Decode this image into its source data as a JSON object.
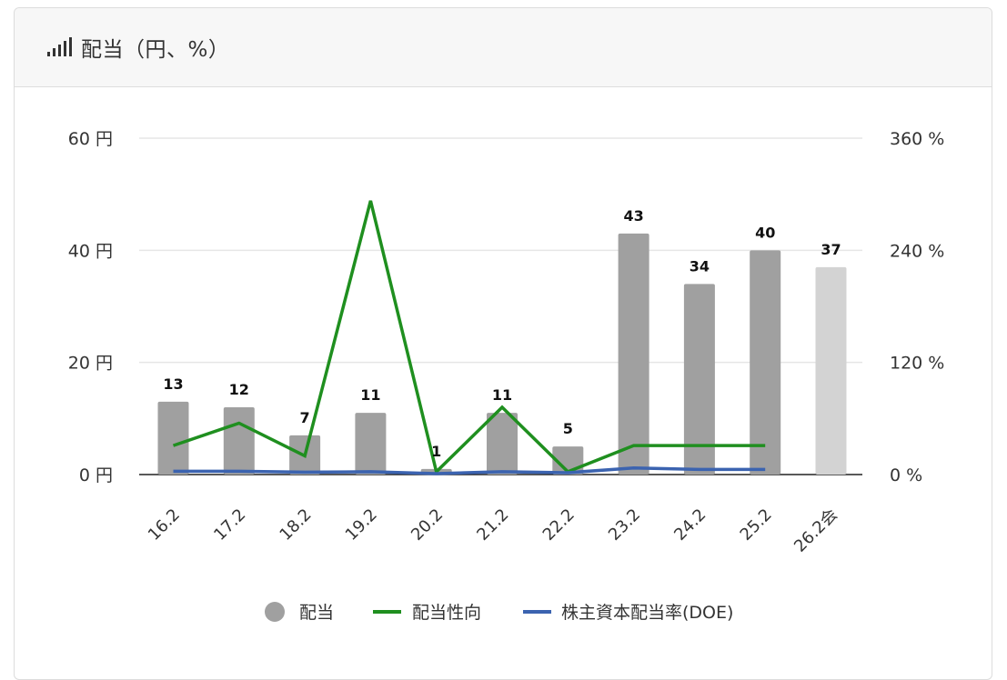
{
  "header": {
    "title": "配当（円、%）",
    "icon": "signal-bars-icon"
  },
  "chart_data": {
    "type": "bar",
    "categories": [
      "16.2",
      "17.2",
      "18.2",
      "19.2",
      "20.2",
      "21.2",
      "22.2",
      "23.2",
      "24.2",
      "25.2",
      "26.2会"
    ],
    "series": [
      {
        "name": "配当",
        "type": "bar",
        "axis": "left",
        "values": [
          13,
          12,
          7,
          11,
          1,
          11,
          5,
          43,
          34,
          40,
          37
        ],
        "labels": [
          "13",
          "12",
          "7",
          "11",
          "1",
          "11",
          "5",
          "43",
          "34",
          "40",
          "37"
        ],
        "color": "#a0a0a0",
        "forecast_color": "#d3d3d3"
      },
      {
        "name": "配当性向",
        "type": "line",
        "axis": "right",
        "values": [
          31,
          55,
          20,
          293,
          3,
          72,
          3,
          31,
          31,
          31,
          null
        ],
        "color": "#1f8f1f"
      },
      {
        "name": "株主資本配当率(DOE)",
        "type": "line",
        "axis": "right",
        "values": [
          3.5,
          3.5,
          2.5,
          3,
          1,
          3,
          2,
          7,
          5.5,
          5.5,
          null
        ],
        "color": "#3b63b0"
      }
    ],
    "y_left": {
      "min": 0,
      "max": 60,
      "ticks": [
        "0 円",
        "20 円",
        "40 円",
        "60 円"
      ]
    },
    "y_right": {
      "min": 0,
      "max": 360,
      "ticks": [
        "0 %",
        "120 %",
        "240 %",
        "360 %"
      ]
    },
    "grid": true,
    "legend_position": "bottom-center"
  }
}
